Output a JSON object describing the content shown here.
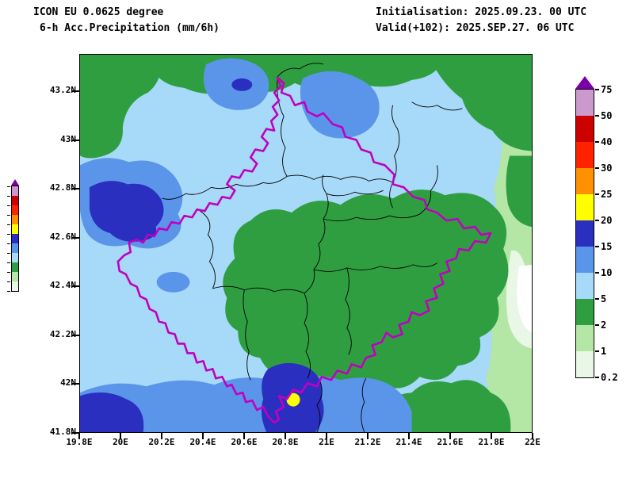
{
  "header": {
    "model": "ICON EU 0.0625 degree",
    "product": "6-h Acc.Precipitation (mm/6h)",
    "initialisation": "Initialisation: 2025.09.23. 00 UTC",
    "valid": "Valid(+102): 2025.SEP.27. 06 UTC"
  },
  "axes": {
    "y_tick_labels": [
      "43.2N",
      "43N",
      "42.8N",
      "42.6N",
      "42.4N",
      "42.2N",
      "42N",
      "41.8N"
    ],
    "x_tick_labels": [
      "19.8E",
      "20E",
      "20.2E",
      "20.4E",
      "20.6E",
      "20.8E",
      "21E",
      "21.2E",
      "21.4E",
      "21.6E",
      "21.8E",
      "22E"
    ]
  },
  "colorbar": {
    "labels_top_to_bottom": [
      "75",
      "50",
      "40",
      "30",
      "25",
      "20",
      "15",
      "10",
      "5",
      "2",
      "1",
      "0.2"
    ],
    "band_colors_top_to_bottom": [
      "#cc99cc",
      "#cc0000",
      "#ff2200",
      "#ff9100",
      "#ffff00",
      "#2a2fc0",
      "#5a95ea",
      "#a7d9f8",
      "#2f9e41",
      "#b4e6a6",
      "#e9f7e6"
    ],
    "arrow_top_color": "#7a00a8",
    "arrow_bottom_color": "#ffffff"
  },
  "palette": {
    "lt_0_2_white": "#ffffff",
    "r0_2_1": "#e9f7e6",
    "r1_2": "#b4e6a6",
    "r2_5": "#2f9e41",
    "r5_10": "#a7d9f8",
    "r10_15": "#5a95ea",
    "r15_20": "#2a2fc0",
    "r20_25": "#ffff00"
  },
  "map": {
    "border_color": "#c000c0",
    "district_border_color": "#000000"
  },
  "chart_data": {
    "type": "heatmap",
    "title": "6-h Acc.Precipitation (mm/6h)",
    "model": "ICON EU 0.0625 degree",
    "initialisation": "2025.09.23. 00 UTC",
    "valid": "2025.SEP.27. 06 UTC",
    "forecast_hour": "+102",
    "unit": "mm/6h",
    "lon_ticks": [
      "19.8E",
      "20E",
      "20.2E",
      "20.4E",
      "20.6E",
      "20.8E",
      "21E",
      "21.2E",
      "21.4E",
      "21.6E",
      "21.8E",
      "22E"
    ],
    "lat_ticks": [
      "43.2N",
      "43N",
      "42.8N",
      "42.6N",
      "42.4N",
      "42.2N",
      "42N",
      "41.8N"
    ],
    "levels_mm": [
      0.2,
      1,
      2,
      5,
      10,
      15,
      20,
      25,
      30,
      40,
      50,
      75
    ],
    "field_summary": "Widespread 5-10 mm; 2-5 mm over central and eastern areas; 10-20 mm patches northwest, west and along the southern edge; local maximum 20-25 mm (yellow marker) near 20.8E 41.95N; under 2 mm at far eastern edge"
  }
}
